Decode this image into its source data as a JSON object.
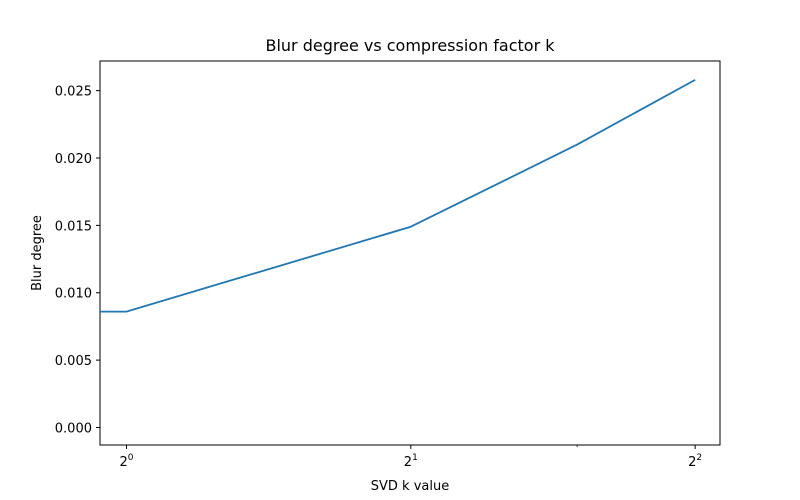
{
  "chart_data": {
    "type": "line",
    "title": "Blur degree vs compression factor k",
    "xlabel": "SVD k value",
    "ylabel": "Blur degree",
    "x_scale": "log2",
    "xlim": [
      0.9375,
      4.25
    ],
    "ylim": [
      -0.0013,
      0.0272
    ],
    "x_ticks": [
      {
        "value": 1,
        "base": "2",
        "exponent": "0"
      },
      {
        "value": 2,
        "base": "2",
        "exponent": "1"
      },
      {
        "value": 4,
        "base": "2",
        "exponent": "2"
      }
    ],
    "y_ticks": [
      {
        "value": 0.0,
        "label": "0.000"
      },
      {
        "value": 0.005,
        "label": "0.005"
      },
      {
        "value": 0.01,
        "label": "0.010"
      },
      {
        "value": 0.015,
        "label": "0.015"
      },
      {
        "value": 0.02,
        "label": "0.020"
      },
      {
        "value": 0.025,
        "label": "0.025"
      }
    ],
    "series": [
      {
        "color": "#1f77b4",
        "x": [
          0.9375,
          1,
          2,
          3,
          4
        ],
        "y": [
          0.0086,
          0.0086,
          0.0149,
          0.021,
          0.0258
        ]
      }
    ],
    "grid": false,
    "legend": false
  }
}
